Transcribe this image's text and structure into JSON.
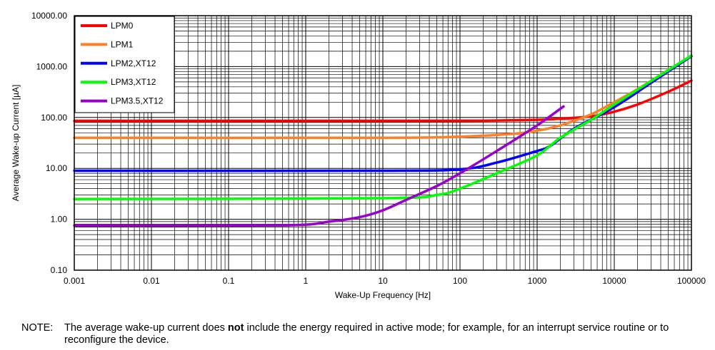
{
  "chart_data": {
    "type": "line",
    "xlabel": "Wake-Up Frequency [Hz]",
    "ylabel": "Average Wake-up Current [µA]",
    "xscale": "log",
    "yscale": "log",
    "xlim": [
      0.001,
      100000
    ],
    "ylim": [
      0.1,
      10000
    ],
    "grid": true,
    "legend_position": "top-left",
    "x_tick_labels": [
      "0.001",
      "0.01",
      "0.1",
      "1",
      "10",
      "100",
      "1000",
      "10000",
      "100000"
    ],
    "y_tick_labels": [
      "10000.00",
      "1000.00",
      "100.00",
      "10.00",
      "1.00",
      "0.10"
    ],
    "series": [
      {
        "name": "LPM0",
        "color": "#ff0000",
        "points": [
          [
            0.001,
            85
          ],
          [
            1,
            85
          ],
          [
            100,
            86
          ],
          [
            1000,
            90
          ],
          [
            2000,
            95
          ],
          [
            5000,
            105
          ],
          [
            10000,
            130
          ],
          [
            20000,
            180
          ],
          [
            50000,
            320
          ],
          [
            100000,
            530
          ]
        ]
      },
      {
        "name": "LPM1",
        "color": "#ff7f27",
        "points": [
          [
            0.001,
            40
          ],
          [
            10,
            40
          ],
          [
            100,
            42
          ],
          [
            500,
            48
          ],
          [
            1000,
            55
          ],
          [
            2000,
            70
          ],
          [
            5000,
            115
          ],
          [
            10000,
            200
          ],
          [
            20000,
            360
          ],
          [
            50000,
            850
          ],
          [
            100000,
            1600
          ]
        ]
      },
      {
        "name": "LPM2,XT12",
        "color": "#0000ff",
        "points": [
          [
            0.001,
            9
          ],
          [
            10,
            9
          ],
          [
            100,
            9.6
          ],
          [
            300,
            13
          ],
          [
            1000,
            22
          ],
          [
            1500,
            28
          ],
          [
            3000,
            60
          ],
          [
            10000,
            160
          ],
          [
            30000,
            480
          ],
          [
            100000,
            1600
          ]
        ]
      },
      {
        "name": "LPM3,XT12",
        "color": "#00ff00",
        "points": [
          [
            0.001,
            2.5
          ],
          [
            10,
            2.6
          ],
          [
            50,
            3
          ],
          [
            100,
            4
          ],
          [
            300,
            8
          ],
          [
            1000,
            18
          ],
          [
            2000,
            40
          ],
          [
            5000,
            90
          ],
          [
            10000,
            180
          ],
          [
            30000,
            520
          ],
          [
            100000,
            1650
          ]
        ]
      },
      {
        "name": "LPM3.5,XT12",
        "color": "#9900cc",
        "points": [
          [
            0.001,
            0.75
          ],
          [
            0.5,
            0.76
          ],
          [
            2,
            0.9
          ],
          [
            5,
            1.1
          ],
          [
            10,
            1.5
          ],
          [
            20,
            2.4
          ],
          [
            50,
            4.5
          ],
          [
            100,
            8
          ],
          [
            300,
            22
          ],
          [
            1000,
            70
          ],
          [
            2200,
            165
          ]
        ]
      }
    ]
  },
  "note": {
    "label": "NOTE:",
    "text_before": "The average wake-up current does ",
    "text_bold": "not",
    "text_after": " include the energy required in active mode; for example, for an interrupt service routine or to reconfigure the device."
  }
}
